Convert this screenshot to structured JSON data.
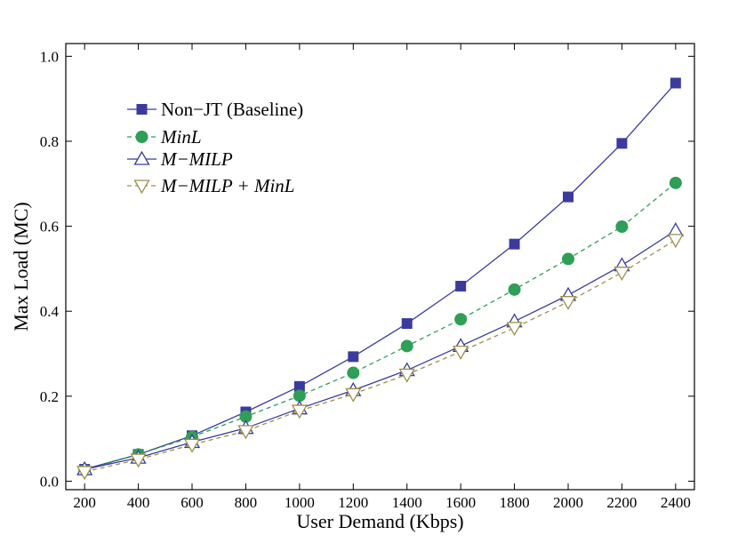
{
  "chart_data": {
    "type": "line",
    "title": "",
    "xlabel": "User Demand (Kbps)",
    "ylabel": "Max Load (MC)",
    "x": [
      200,
      400,
      600,
      800,
      1000,
      1200,
      1400,
      1600,
      1800,
      2000,
      2200,
      2400
    ],
    "xlim": [
      130,
      2470
    ],
    "ylim": [
      -0.02,
      1.03
    ],
    "xticks": [
      "200",
      "400",
      "600",
      "800",
      "1000",
      "1200",
      "1400",
      "1600",
      "1800",
      "2000",
      "2200",
      "2400"
    ],
    "yticks": [
      "0.0",
      "0.2",
      "0.4",
      "0.6",
      "0.8",
      "1.0"
    ],
    "grid": false,
    "legend_position": "top-left",
    "series": [
      {
        "name": "Non−JT (Baseline)",
        "values": [
          0.028,
          0.063,
          0.107,
          0.163,
          0.223,
          0.293,
          0.371,
          0.459,
          0.558,
          0.669,
          0.795,
          0.937
        ],
        "marker": "square",
        "line_style": "solid",
        "color": "#3b3b9e"
      },
      {
        "name": "MinL",
        "values": [
          0.026,
          0.063,
          0.104,
          0.152,
          0.201,
          0.255,
          0.318,
          0.381,
          0.451,
          0.523,
          0.599,
          0.702
        ],
        "marker": "circle",
        "line_style": "dashed",
        "color": "#2f9e57"
      },
      {
        "name": "M−MILP",
        "values": [
          0.028,
          0.055,
          0.092,
          0.125,
          0.171,
          0.214,
          0.261,
          0.318,
          0.376,
          0.438,
          0.508,
          0.59
        ],
        "marker": "triangle-up",
        "line_style": "solid",
        "color": "#3b3b9e"
      },
      {
        "name": "M−MILP + MinL",
        "values": [
          0.022,
          0.051,
          0.086,
          0.118,
          0.166,
          0.205,
          0.251,
          0.305,
          0.361,
          0.422,
          0.491,
          0.568
        ],
        "marker": "triangle-down",
        "line_style": "dashed",
        "color": "#9e8f4a"
      }
    ]
  }
}
